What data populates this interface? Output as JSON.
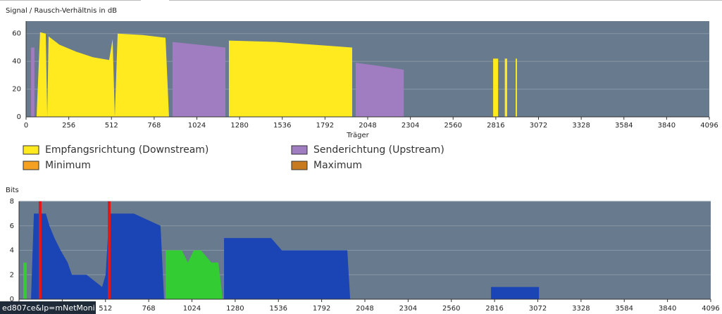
{
  "chart_data": [
    {
      "type": "area",
      "title": "Signal / Rausch-Verhältnis in dB",
      "x_label": "Träger",
      "xlim": [
        0,
        4096
      ],
      "xticks": [
        0,
        256,
        512,
        768,
        1024,
        1280,
        1536,
        1792,
        2048,
        2304,
        2560,
        2816,
        3072,
        3328,
        3584,
        3840,
        4096
      ],
      "ylim": [
        0,
        69
      ],
      "yticks": [
        0,
        20,
        40,
        60
      ],
      "grid": true,
      "x": [
        25,
        30,
        50,
        55,
        63,
        84,
        118,
        127,
        135,
        200,
        300,
        400,
        498,
        519,
        532,
        549,
        700,
        836,
        857,
        878,
        1195,
        1216,
        1500,
        1955,
        1976,
        2100,
        2264,
        2800,
        2830,
        2845,
        2870,
        2884,
        2930,
        2935,
        2943
      ],
      "series": [
        {
          "name": "Empfangsrichtung (Downstream)",
          "color": "#ffea1f",
          "values": [
            null,
            null,
            null,
            null,
            0,
            61,
            60,
            0,
            58,
            52,
            47,
            43,
            41,
            56,
            0,
            60,
            59,
            57,
            0,
            null,
            null,
            55,
            54,
            50,
            null,
            null,
            null,
            42,
            42,
            null,
            42,
            42,
            null,
            42,
            42
          ]
        },
        {
          "name": "Senderichtung (Upstream)",
          "color": "#a07cc0",
          "values": [
            null,
            50,
            50,
            null,
            null,
            null,
            null,
            null,
            null,
            null,
            null,
            null,
            null,
            null,
            null,
            null,
            null,
            null,
            null,
            54,
            50,
            null,
            null,
            null,
            39,
            37,
            34,
            null,
            null,
            null,
            null,
            null,
            null,
            null,
            null
          ]
        },
        {
          "name": "Minimum",
          "color": "#f5a020",
          "values": [
            null,
            null,
            null,
            null,
            null,
            null,
            null,
            null,
            null,
            null,
            null,
            null,
            null,
            null,
            null,
            null,
            null,
            null,
            null,
            null,
            null,
            null,
            null,
            null,
            null,
            null,
            null,
            null,
            null,
            null,
            null,
            null,
            null,
            null,
            null
          ]
        },
        {
          "name": "Maximum",
          "color": "#c87a20",
          "values": [
            null,
            null,
            null,
            null,
            null,
            null,
            null,
            null,
            null,
            null,
            null,
            null,
            null,
            null,
            null,
            null,
            null,
            null,
            null,
            null,
            null,
            null,
            null,
            null,
            null,
            null,
            null,
            null,
            null,
            null,
            null,
            null,
            null,
            null,
            null
          ]
        }
      ]
    },
    {
      "type": "area",
      "title": "Bits",
      "xlim": [
        0,
        4096
      ],
      "xticks": [
        0,
        256,
        512,
        768,
        1024,
        1280,
        1536,
        1792,
        2048,
        2304,
        2560,
        2816,
        3072,
        3328,
        3584,
        3840,
        4096
      ],
      "ylim": [
        0,
        8
      ],
      "yticks": [
        0,
        2,
        4,
        6,
        8
      ],
      "grid": true,
      "x": [
        25,
        46,
        71,
        88,
        159,
        180,
        210,
        246,
        288,
        313,
        400,
        492,
        513,
        534,
        680,
        838,
        859,
        868,
        964,
        1000,
        1035,
        1077,
        1139,
        1180,
        1206,
        1214,
        1493,
        1556,
        1944,
        1961,
        2500,
        2795,
        3079
      ],
      "series": [
        {
          "color": "#1b45b5",
          "values": [
            null,
            null,
            0,
            7,
            7,
            6,
            5,
            4,
            3,
            2,
            2,
            1,
            2,
            7,
            7,
            6,
            0,
            null,
            null,
            null,
            null,
            null,
            null,
            null,
            null,
            5,
            5,
            4,
            4,
            0,
            null,
            1,
            1
          ]
        },
        {
          "color": "#33cc33",
          "values": [
            3,
            3,
            null,
            null,
            null,
            null,
            null,
            null,
            null,
            null,
            null,
            null,
            null,
            null,
            null,
            null,
            null,
            4,
            4,
            3,
            4,
            4,
            3,
            3,
            0,
            null,
            null,
            null,
            null,
            null,
            null,
            null,
            null
          ]
        }
      ],
      "markers": {
        "color": "#e01818",
        "x": [
          125,
          534
        ]
      }
    }
  ],
  "status_url": "ed807ce&lp=mNetMoni"
}
